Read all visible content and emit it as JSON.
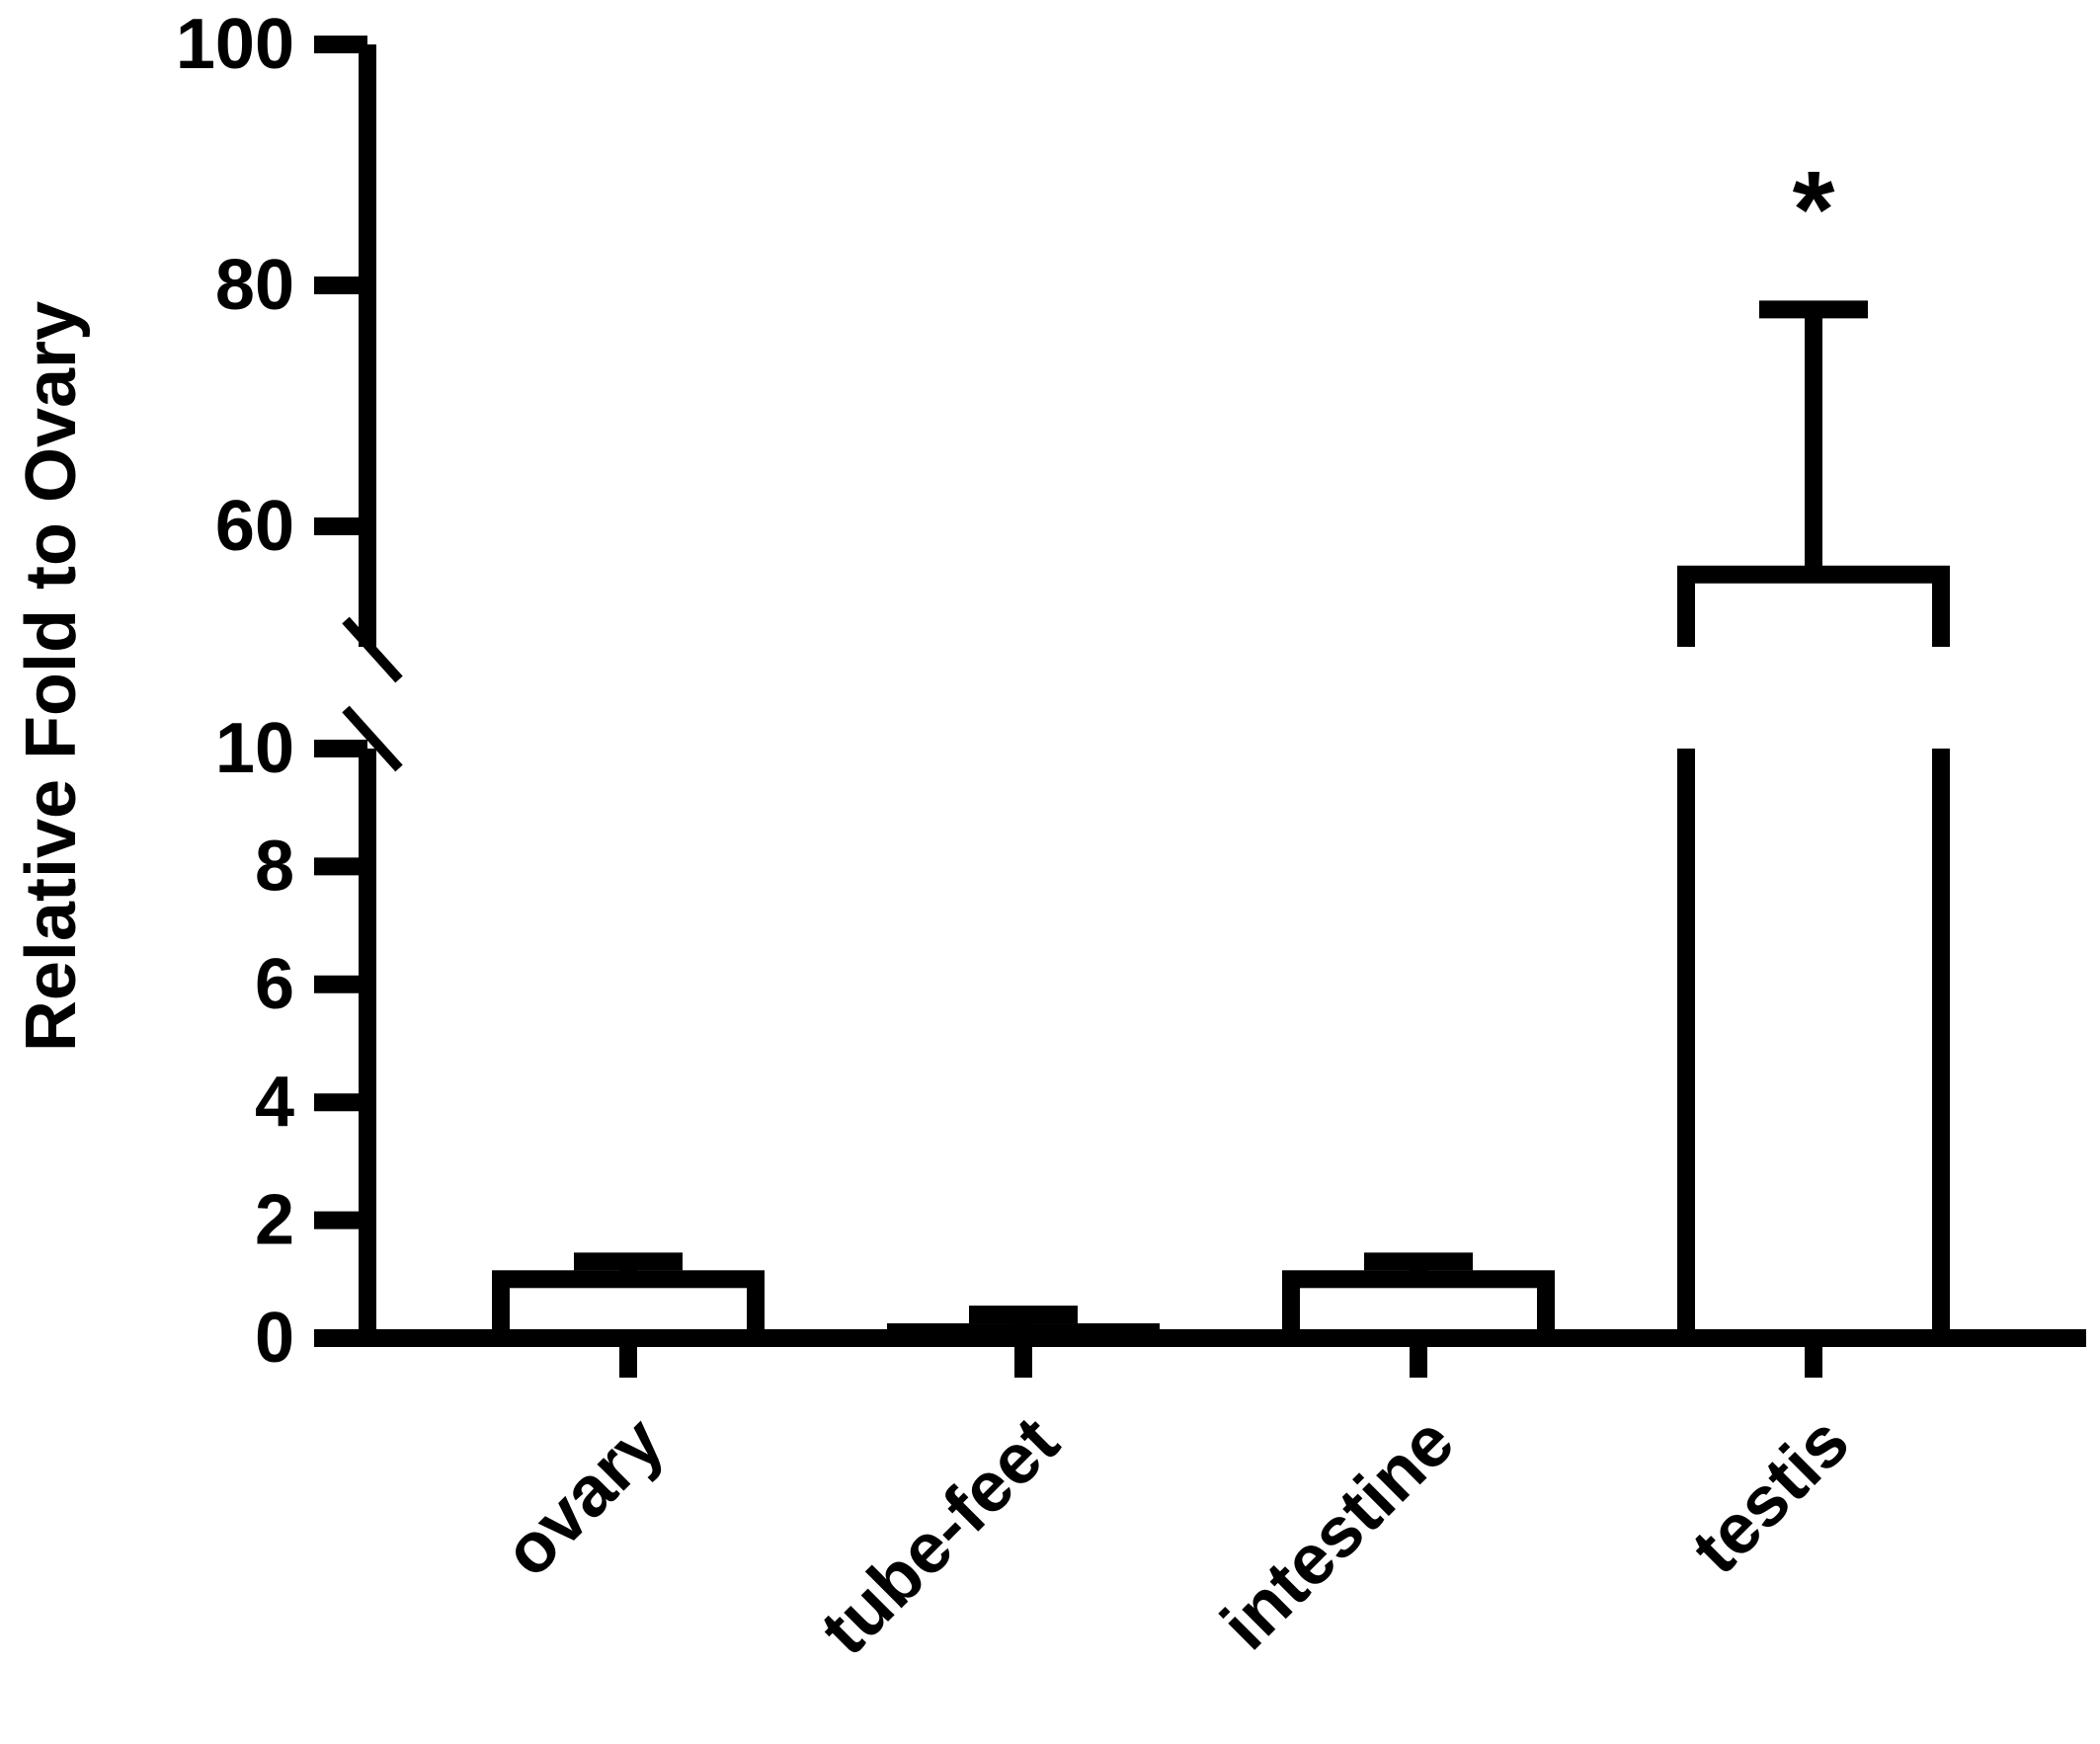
{
  "chart_data": {
    "type": "bar",
    "ylabel": "Relative Fold to Ovary",
    "categories": [
      "ovary",
      "tube-feet",
      "intestine",
      "testis"
    ],
    "values": [
      1,
      0.1,
      1,
      56
    ],
    "errors": [
      0.3,
      0.3,
      0.3,
      22
    ],
    "annotations": [
      {
        "category": "testis",
        "text": "*"
      }
    ],
    "y_axis": {
      "broken": true,
      "lower_segment": {
        "range": [
          0,
          10
        ],
        "ticks": [
          "0",
          "2",
          "4",
          "6",
          "8",
          "10"
        ]
      },
      "upper_segment": {
        "range": [
          50,
          100
        ],
        "ticks": [
          "60",
          "80",
          "100"
        ]
      }
    },
    "grid": false,
    "legend": "none"
  }
}
